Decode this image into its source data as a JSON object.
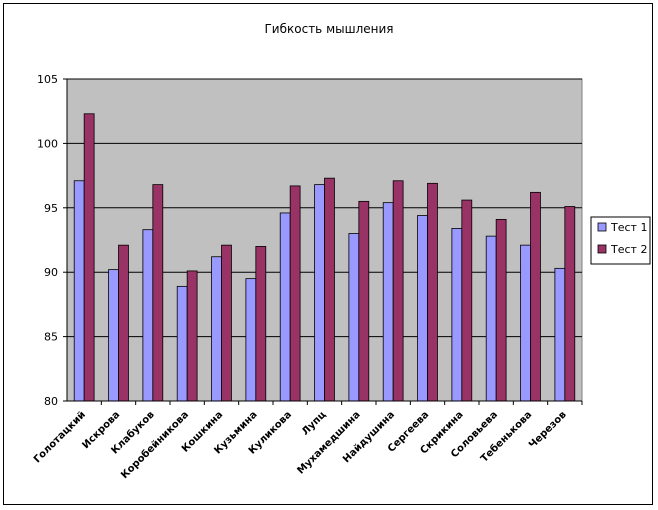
{
  "chart_data": {
    "type": "bar",
    "title": "Гибкость мышления",
    "xlabel": "",
    "ylabel": "",
    "ylim": [
      80,
      105
    ],
    "yticks": [
      80,
      85,
      90,
      95,
      100,
      105
    ],
    "grid": true,
    "legend_position": "right",
    "categories": [
      "Голотацкий",
      "Искрова",
      "Клабуков",
      "Коробейникова",
      "Кошкина",
      "Кузьмина",
      "Куликова",
      "Лупц",
      "Мухамедшина",
      "Найдушина",
      "Сергеева",
      "Скрикина",
      "Соловьева",
      "Тебенькова",
      "Черезов"
    ],
    "series": [
      {
        "name": "Тест 1",
        "color": "#9999ff",
        "values": [
          97.1,
          90.2,
          93.3,
          88.9,
          91.2,
          89.5,
          94.6,
          96.8,
          93.0,
          95.4,
          94.4,
          93.4,
          92.8,
          92.1,
          90.3
        ]
      },
      {
        "name": "Тест 2",
        "color": "#993366",
        "values": [
          102.3,
          92.1,
          96.8,
          90.1,
          92.1,
          92.0,
          96.7,
          97.3,
          95.5,
          97.1,
          96.9,
          95.6,
          94.1,
          96.2,
          95.1
        ]
      }
    ],
    "plot_bg": "#c0c0c0"
  }
}
